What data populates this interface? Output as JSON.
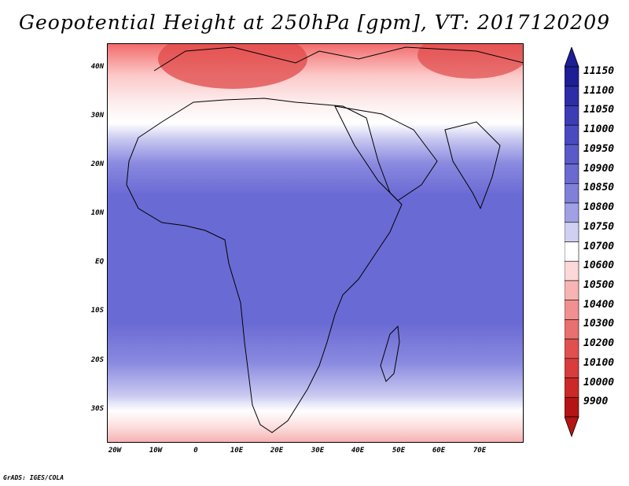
{
  "title": "Geopotential Height at 250hPa [gpm], VT: 2017120209",
  "footer": "GrADS: IGES/COLA",
  "map": {
    "lon_range": [
      -23,
      80
    ],
    "lat_range": [
      -37,
      45
    ],
    "lat_ticks": [
      "40N",
      "30N",
      "20N",
      "10N",
      "EQ",
      "10S",
      "20S",
      "30S"
    ],
    "lon_ticks": [
      "20W",
      "10W",
      "0",
      "10E",
      "20E",
      "30E",
      "40E",
      "50E",
      "60E",
      "70E"
    ]
  },
  "colorbar": {
    "labels": [
      "11150",
      "11100",
      "11050",
      "11000",
      "10950",
      "10900",
      "10850",
      "10800",
      "10750",
      "10700",
      "10600",
      "10500",
      "10400",
      "10300",
      "10200",
      "10100",
      "10000",
      "9900"
    ],
    "colors": [
      "#1e1e96",
      "#2d2da8",
      "#3c3cb4",
      "#4a4ac0",
      "#5a5ac8",
      "#6a6ad0",
      "#8080d8",
      "#a0a0e4",
      "#d0d0f2",
      "#ffffff",
      "#fcd8d8",
      "#f8b4b4",
      "#f09090",
      "#e87070",
      "#e05050",
      "#d83c3c",
      "#cc2828",
      "#b41414"
    ]
  }
}
